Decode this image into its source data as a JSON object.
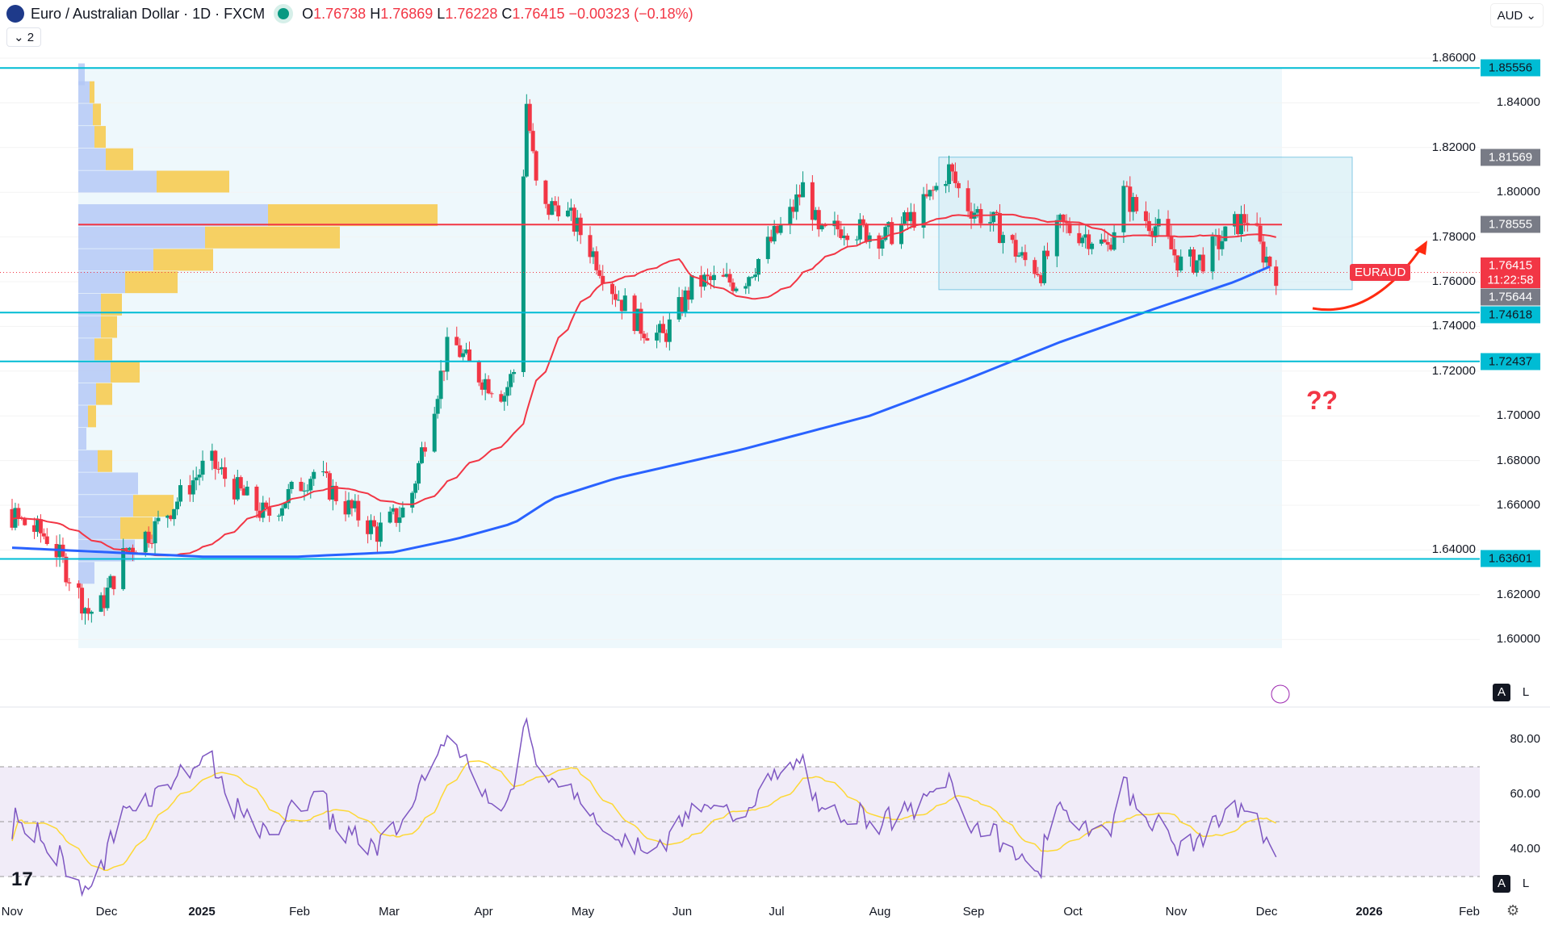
{
  "header": {
    "title": "Euro / Australian Dollar · 1D · FXCM",
    "o_label": "O",
    "open": "1.76738",
    "h_label": "H",
    "high": "1.76869",
    "l_label": "L",
    "low": "1.76228",
    "c_label": "C",
    "close": "1.76415",
    "change": "−0.00323 (−0.18%)",
    "collapse": "2"
  },
  "currency": "AUD",
  "price_axis": [
    "1.86000",
    "1.84000",
    "1.82000",
    "1.80000",
    "1.78000",
    "1.76000",
    "1.74000",
    "1.72000",
    "1.70000",
    "1.68000",
    "1.66000",
    "1.64000",
    "1.62000",
    "1.60000"
  ],
  "price_axis_values": [
    1.86,
    1.84,
    1.82,
    1.8,
    1.78,
    1.76,
    1.74,
    1.72,
    1.7,
    1.68,
    1.66,
    1.64,
    1.62,
    1.6
  ],
  "levels": [
    {
      "value": 1.85556,
      "label": "1.85556",
      "color": "#00bcd4"
    },
    {
      "value": 1.74618,
      "label": "1.74618",
      "color": "#00bcd4"
    },
    {
      "value": 1.72437,
      "label": "1.72437",
      "color": "#00bcd4"
    },
    {
      "value": 1.63601,
      "label": "1.63601",
      "color": "#00bcd4"
    }
  ],
  "box_labels": [
    {
      "value": 1.81569,
      "label": "1.81569"
    },
    {
      "value": 1.78555,
      "label": "1.78555"
    },
    {
      "value": 1.75644,
      "label": "1.75644"
    }
  ],
  "current": {
    "symbol": "EURAUD",
    "price": "1.76415",
    "countdown": "11:22:58",
    "value": 1.76415,
    "color": "#f23645"
  },
  "annotation": "??",
  "rsi_axis": [
    "80.00",
    "60.00",
    "40.00"
  ],
  "time_axis": [
    "Nov",
    "Dec",
    "2025",
    "Feb",
    "Mar",
    "Apr",
    "May",
    "Jun",
    "Jul",
    "Aug",
    "Sep",
    "Oct",
    "Nov",
    "Dec",
    "2026",
    "Feb"
  ],
  "colors": {
    "up": "#089981",
    "down": "#f23645",
    "ma_fast": "#f23645",
    "ma_slow": "#2962ff",
    "rsi": "#7e57c2",
    "rsi_ma": "#fdd835"
  },
  "price_path": [
    [
      0,
      1.655
    ],
    [
      12,
      1.645
    ],
    [
      24,
      1.612
    ],
    [
      28,
      1.615
    ],
    [
      36,
      1.64
    ],
    [
      45,
      1.65
    ],
    [
      62,
      1.68
    ],
    [
      70,
      1.668
    ],
    [
      80,
      1.655
    ],
    [
      95,
      1.675
    ],
    [
      105,
      1.66
    ],
    [
      115,
      1.648
    ],
    [
      125,
      1.66
    ],
    [
      130,
      1.69
    ],
    [
      138,
      1.735
    ],
    [
      145,
      1.72
    ],
    [
      150,
      1.715
    ],
    [
      155,
      1.71
    ],
    [
      158,
      1.72
    ],
    [
      160,
      1.78
    ],
    [
      162,
      1.84
    ],
    [
      166,
      1.79
    ],
    [
      172,
      1.795
    ],
    [
      180,
      1.78
    ],
    [
      190,
      1.755
    ],
    [
      198,
      1.74
    ],
    [
      205,
      1.735
    ],
    [
      215,
      1.76
    ],
    [
      230,
      1.76
    ],
    [
      245,
      1.79
    ],
    [
      250,
      1.805
    ],
    [
      254,
      1.78
    ],
    [
      262,
      1.785
    ],
    [
      275,
      1.78
    ],
    [
      285,
      1.79
    ],
    [
      295,
      1.81
    ],
    [
      300,
      1.795
    ],
    [
      310,
      1.785
    ],
    [
      318,
      1.77
    ],
    [
      324,
      1.765
    ],
    [
      330,
      1.785
    ],
    [
      340,
      1.78
    ],
    [
      345,
      1.775
    ],
    [
      350,
      1.8
    ],
    [
      355,
      1.79
    ],
    [
      360,
      1.785
    ],
    [
      368,
      1.768
    ],
    [
      375,
      1.77
    ],
    [
      385,
      1.785
    ],
    [
      390,
      1.79
    ],
    [
      393,
      1.775
    ],
    [
      398,
      1.764
    ]
  ],
  "ma_slow_path": [
    [
      0,
      1.641
    ],
    [
      60,
      1.637
    ],
    [
      90,
      1.637
    ],
    [
      120,
      1.639
    ],
    [
      140,
      1.645
    ],
    [
      158,
      1.652
    ],
    [
      170,
      1.663
    ],
    [
      190,
      1.672
    ],
    [
      230,
      1.685
    ],
    [
      270,
      1.7
    ],
    [
      300,
      1.716
    ],
    [
      330,
      1.733
    ],
    [
      360,
      1.748
    ],
    [
      385,
      1.76
    ],
    [
      398,
      1.768
    ]
  ]
}
